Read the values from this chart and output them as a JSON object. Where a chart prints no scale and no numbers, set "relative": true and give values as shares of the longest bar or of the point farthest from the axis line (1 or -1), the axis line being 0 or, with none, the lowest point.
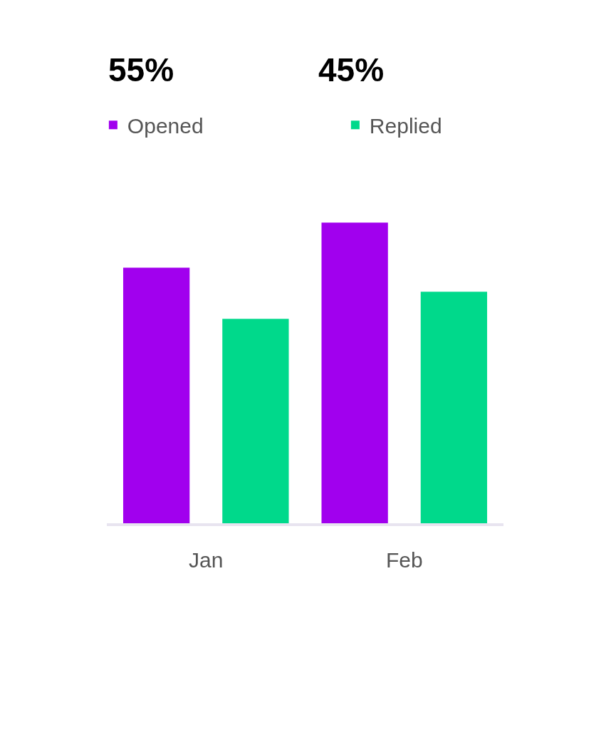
{
  "chart_data": {
    "type": "bar",
    "relative": true,
    "categories": [
      "Jan",
      "Feb"
    ],
    "series": [
      {
        "name": "Opened",
        "color": "#a100ee",
        "values": [
          0.85,
          1
        ]
      },
      {
        "name": "Replied",
        "color": "#00d98b",
        "values": [
          0.68,
          0.77
        ]
      }
    ],
    "annotations": [
      "55%",
      "45%"
    ],
    "legend": "top left"
  }
}
